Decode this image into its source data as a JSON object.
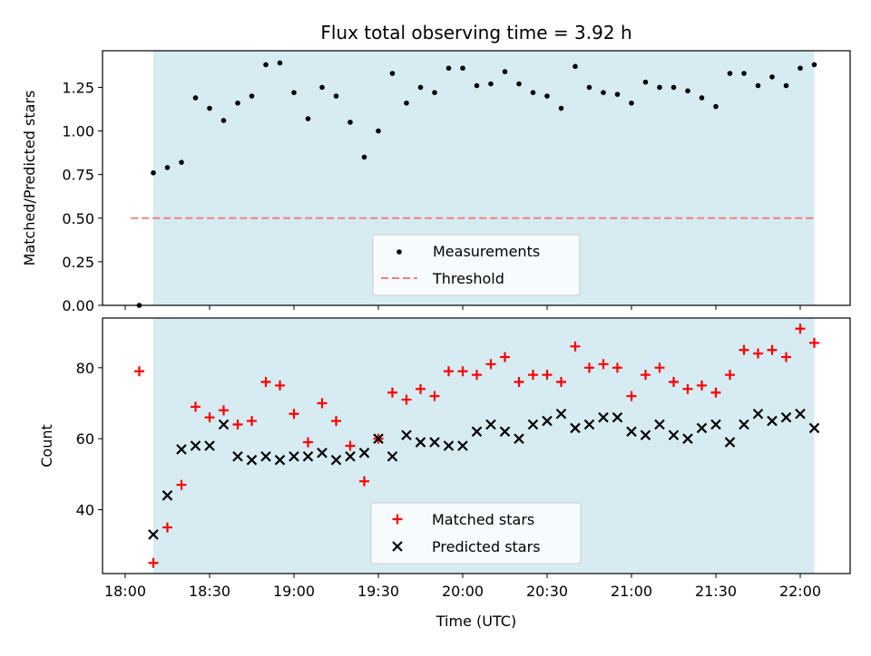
{
  "chart_data": {
    "type": "scatter",
    "title": "Flux total observing time = 3.92 h",
    "xlabel": "Time (UTC)",
    "x_ticks": [
      "18:00",
      "18:30",
      "19:00",
      "19:30",
      "20:00",
      "20:30",
      "21:00",
      "21:30",
      "22:00"
    ],
    "observing_window": {
      "start_min": 10,
      "end_min": 245
    },
    "times_min": [
      5,
      10,
      15,
      20,
      25,
      30,
      35,
      40,
      45,
      50,
      55,
      60,
      65,
      70,
      75,
      80,
      85,
      90,
      95,
      100,
      105,
      110,
      115,
      120,
      125,
      130,
      135,
      140,
      145,
      150,
      155,
      160,
      165,
      170,
      175,
      180,
      185,
      190,
      195,
      200,
      205,
      210,
      215,
      220,
      225,
      230,
      235,
      240,
      245
    ],
    "top_panel": {
      "ylabel": "Matched/Predicted stars",
      "ylim": [
        0,
        1.46
      ],
      "y_ticks": [
        "0.00",
        "0.25",
        "0.50",
        "0.75",
        "1.00",
        "1.25"
      ],
      "threshold": 0.5,
      "legend": {
        "measurements": "Measurements",
        "threshold": "Threshold"
      },
      "ratio": [
        0.0,
        0.76,
        0.79,
        0.82,
        1.19,
        1.13,
        1.06,
        1.16,
        1.2,
        1.38,
        1.39,
        1.22,
        1.07,
        1.25,
        1.2,
        1.05,
        0.85,
        1.0,
        1.33,
        1.16,
        1.25,
        1.22,
        1.36,
        1.36,
        1.26,
        1.27,
        1.34,
        1.27,
        1.22,
        1.2,
        1.13,
        1.37,
        1.25,
        1.22,
        1.21,
        1.16,
        1.28,
        1.25,
        1.25,
        1.23,
        1.19,
        1.14,
        1.33,
        1.33,
        1.26,
        1.31,
        1.26,
        1.36,
        1.38
      ]
    },
    "bottom_panel": {
      "ylabel": "Count",
      "ylim": [
        22,
        94
      ],
      "y_ticks": [
        "40",
        "60",
        "80"
      ],
      "legend": {
        "matched": "Matched stars",
        "predicted": "Predicted stars"
      },
      "matched": [
        79,
        25,
        35,
        47,
        69,
        66,
        68,
        64,
        65,
        76,
        75,
        67,
        59,
        70,
        65,
        58,
        48,
        60,
        73,
        71,
        74,
        72,
        79,
        79,
        78,
        81,
        83,
        76,
        78,
        78,
        76,
        86,
        80,
        81,
        80,
        72,
        78,
        80,
        76,
        74,
        75,
        73,
        78,
        85,
        84,
        85,
        83,
        91,
        87
      ],
      "predicted": [
        null,
        33,
        44,
        57,
        58,
        58,
        64,
        55,
        54,
        55,
        54,
        55,
        55,
        56,
        54,
        55,
        56,
        60,
        55,
        61,
        59,
        59,
        58,
        58,
        62,
        64,
        62,
        60,
        64,
        65,
        67,
        63,
        64,
        66,
        66,
        62,
        61,
        64,
        61,
        60,
        63,
        64,
        59,
        64,
        67,
        65,
        66,
        67,
        63
      ]
    }
  },
  "colors": {
    "window": "#add8e6",
    "measurement": "#000000",
    "threshold": "#f08080",
    "matched": "#ff0000",
    "predicted": "#000000"
  }
}
